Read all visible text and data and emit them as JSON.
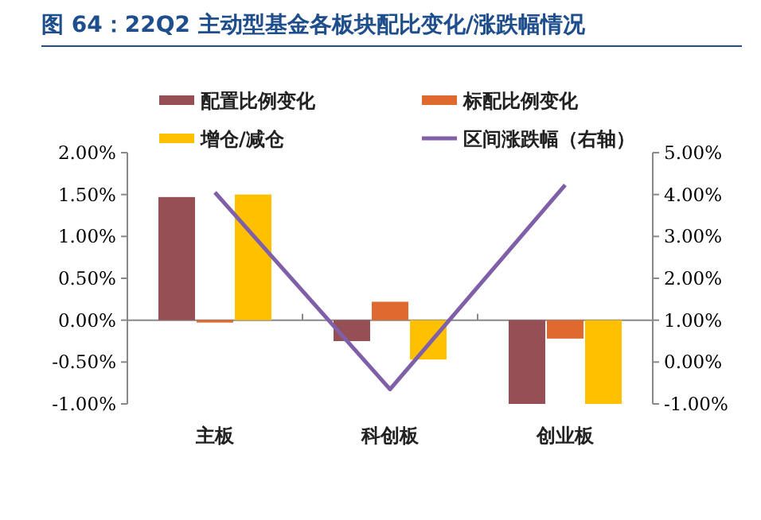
{
  "chart_data": {
    "type": "bar",
    "title": "图 64：22Q2 主动型基金各板块配比变化/涨跌幅情况",
    "categories": [
      "主板",
      "科创板",
      "创业板"
    ],
    "series": [
      {
        "name": "配置比例变化",
        "color": "#954f55",
        "values": [
          1.47,
          -0.25,
          -1.0
        ]
      },
      {
        "name": "标配比例变化",
        "color": "#e0692f",
        "values": [
          -0.02,
          0.22,
          -0.22
        ]
      },
      {
        "name": "增仓/减仓",
        "color": "#ffc000",
        "values": [
          1.5,
          -0.47,
          -1.0
        ]
      },
      {
        "name": "区间涨跌幅（右轴）",
        "type": "line",
        "axis": "y2",
        "color": "#7f5fa8",
        "values": [
          4.05,
          -0.65,
          4.23
        ]
      }
    ],
    "ylim": [
      -1,
      2
    ],
    "yticks": [
      {
        "value": -1,
        "label": "-1.00%"
      },
      {
        "value": -0.5,
        "label": "-0.50%"
      },
      {
        "value": 0,
        "label": "0.00%"
      },
      {
        "value": 0.5,
        "label": "0.50%"
      },
      {
        "value": 1,
        "label": "1.00%"
      },
      {
        "value": 1.5,
        "label": "1.50%"
      },
      {
        "value": 2,
        "label": "2.00%"
      }
    ],
    "y2lim": [
      -1,
      5
    ],
    "y2ticks": [
      {
        "value": -1,
        "label": "-1.00%"
      },
      {
        "value": 0,
        "label": "0.00%"
      },
      {
        "value": 1,
        "label": "1.00%"
      },
      {
        "value": 2,
        "label": "2.00%"
      },
      {
        "value": 3,
        "label": "3.00%"
      },
      {
        "value": 4,
        "label": "4.00%"
      },
      {
        "value": 5,
        "label": "5.00%"
      }
    ],
    "legend": "top"
  }
}
